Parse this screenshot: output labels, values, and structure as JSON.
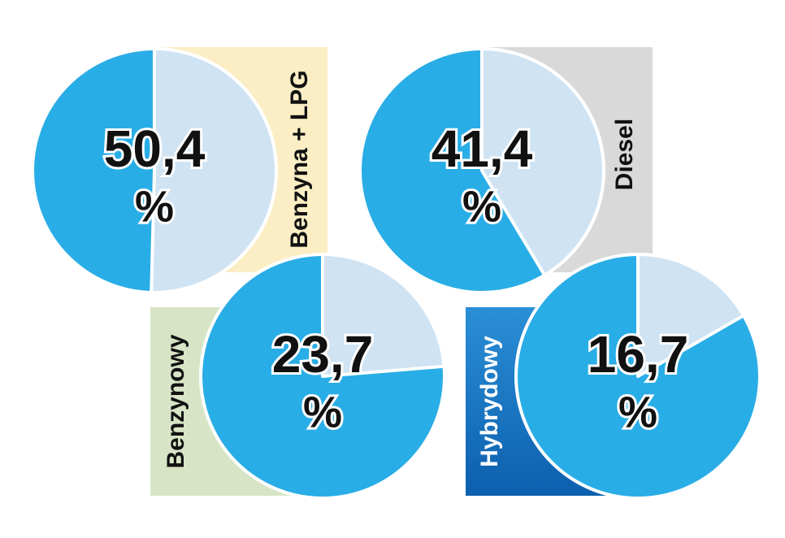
{
  "chart_data": [
    {
      "type": "pie",
      "title": "Benzyna + LPG",
      "values": [
        50.4
      ],
      "value_labels": [
        "50,4"
      ],
      "unit": "%",
      "color": "#cfe3f3"
    },
    {
      "type": "pie",
      "title": "Diesel",
      "values": [
        41.4
      ],
      "value_labels": [
        "41,4"
      ],
      "unit": "%",
      "color": "#cfe3f3"
    },
    {
      "type": "pie",
      "title": "Benzynowy",
      "values": [
        23.7
      ],
      "value_labels": [
        "23,7"
      ],
      "unit": "%",
      "color": "#cfe3f3"
    },
    {
      "type": "pie",
      "title": "Hybrydowy",
      "values": [
        16.7
      ],
      "value_labels": [
        "16,7"
      ],
      "unit": "%",
      "color": "#cfe3f3"
    }
  ]
}
